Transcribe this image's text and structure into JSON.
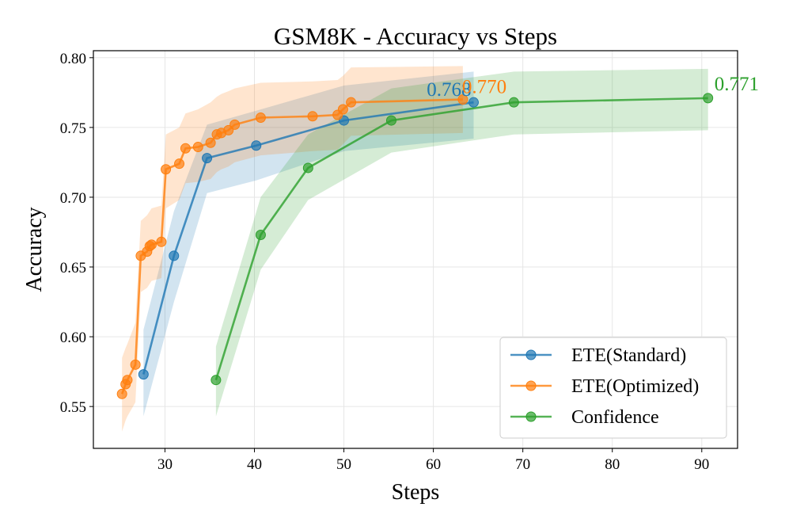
{
  "chart_data": {
    "type": "line",
    "title": "GSM8K - Accuracy vs Steps",
    "xlabel": "Steps",
    "ylabel": "Accuracy",
    "xlim": [
      22,
      94
    ],
    "ylim": [
      0.52,
      0.805
    ],
    "xticks": [
      30,
      40,
      50,
      60,
      70,
      80,
      90
    ],
    "yticks": [
      0.55,
      0.6,
      0.65,
      0.7,
      0.75,
      0.8
    ],
    "xtick_labels": [
      "30",
      "40",
      "50",
      "60",
      "70",
      "80",
      "90"
    ],
    "ytick_labels": [
      "0.55",
      "0.60",
      "0.65",
      "0.70",
      "0.75",
      "0.80"
    ],
    "grid": true,
    "legend_position": "lower-right",
    "series": [
      {
        "name": "ETE(Standard)",
        "color": "#1f77b4",
        "x": [
          27.6,
          31.0,
          34.7,
          40.2,
          50.0,
          64.5
        ],
        "y": [
          0.573,
          0.658,
          0.728,
          0.737,
          0.755,
          0.768
        ],
        "band_upper": [
          0.605,
          0.69,
          0.752,
          0.762,
          0.78,
          0.79
        ],
        "band_lower": [
          0.543,
          0.625,
          0.703,
          0.712,
          0.733,
          0.742
        ],
        "final_label": "0.768"
      },
      {
        "name": "ETE(Optimized)",
        "color": "#ff7f0e",
        "x": [
          25.2,
          25.6,
          25.8,
          26.7,
          27.3,
          28.0,
          28.3,
          28.5,
          29.6,
          30.1,
          31.6,
          32.3,
          33.7,
          35.1,
          35.8,
          36.3,
          37.1,
          37.8,
          40.7,
          46.5,
          49.3,
          49.9,
          50.8,
          63.3
        ],
        "y": [
          0.559,
          0.566,
          0.569,
          0.58,
          0.658,
          0.661,
          0.665,
          0.666,
          0.668,
          0.72,
          0.724,
          0.735,
          0.736,
          0.739,
          0.745,
          0.746,
          0.748,
          0.752,
          0.757,
          0.758,
          0.759,
          0.763,
          0.768,
          0.77
        ],
        "band_upper": [
          0.585,
          0.592,
          0.595,
          0.61,
          0.683,
          0.687,
          0.69,
          0.692,
          0.694,
          0.745,
          0.75,
          0.76,
          0.763,
          0.768,
          0.772,
          0.774,
          0.776,
          0.778,
          0.782,
          0.783,
          0.784,
          0.787,
          0.793,
          0.794
        ],
        "band_lower": [
          0.532,
          0.54,
          0.543,
          0.553,
          0.632,
          0.635,
          0.638,
          0.64,
          0.642,
          0.692,
          0.698,
          0.71,
          0.711,
          0.713,
          0.718,
          0.72,
          0.722,
          0.725,
          0.73,
          0.733,
          0.734,
          0.738,
          0.744,
          0.746
        ],
        "final_label": "0.770"
      },
      {
        "name": "Confidence",
        "color": "#2ca02c",
        "x": [
          35.7,
          40.7,
          46.0,
          55.3,
          69.0,
          90.7
        ],
        "y": [
          0.569,
          0.673,
          0.721,
          0.755,
          0.768,
          0.771
        ],
        "band_upper": [
          0.593,
          0.7,
          0.745,
          0.778,
          0.79,
          0.792
        ],
        "band_lower": [
          0.543,
          0.648,
          0.698,
          0.732,
          0.745,
          0.748
        ],
        "final_label": "0.771"
      }
    ]
  }
}
